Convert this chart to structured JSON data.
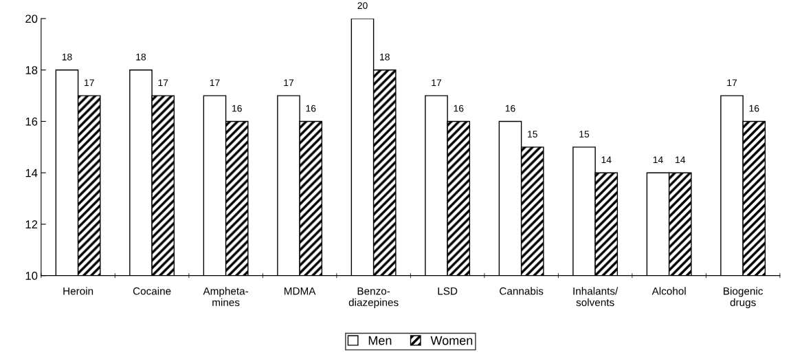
{
  "chart_data": {
    "type": "bar",
    "categories": [
      "Heroin",
      "Cocaine",
      "Ampheta-\nmines",
      "MDMA",
      "Benzo-\ndiazepines",
      "LSD",
      "Cannabis",
      "Inhalants/\nsolvents",
      "Alcohol",
      "Biogenic\ndrugs"
    ],
    "series": [
      {
        "name": "Men",
        "color": "#ffffff",
        "values": [
          18,
          18,
          17,
          17,
          20,
          17,
          16,
          15,
          14,
          17
        ]
      },
      {
        "name": "Women",
        "color": "#000000",
        "values": [
          17,
          17,
          16,
          16,
          18,
          16,
          15,
          14,
          14,
          16
        ]
      }
    ],
    "ylim": [
      10,
      20
    ],
    "yticks": [
      10,
      12,
      14,
      16,
      18,
      20
    ],
    "grid": false,
    "legend": "bottom",
    "data_labels": true
  }
}
